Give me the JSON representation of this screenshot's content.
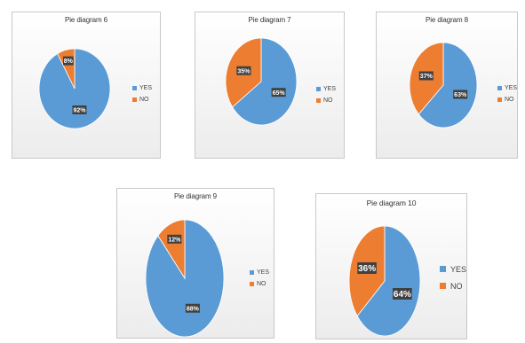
{
  "colors": {
    "yes": "#5b9bd5",
    "no": "#ed7d31",
    "label_bg": "#404040"
  },
  "chart_data": [
    {
      "type": "pie",
      "title": "Pie diagram 6",
      "categories": [
        "YES",
        "NO"
      ],
      "values": [
        92,
        8
      ],
      "labels": [
        "92%",
        "8%"
      ],
      "legend": "right"
    },
    {
      "type": "pie",
      "title": "Pie diagram 7",
      "categories": [
        "YES",
        "NO"
      ],
      "values": [
        65,
        35
      ],
      "labels": [
        "65%",
        "35%"
      ],
      "legend": "right"
    },
    {
      "type": "pie",
      "title": "Pie diagram 8",
      "categories": [
        "YES",
        "NO"
      ],
      "values": [
        63,
        37
      ],
      "labels": [
        "63%",
        "37%"
      ],
      "legend": "right"
    },
    {
      "type": "pie",
      "title": "Pie diagram 9",
      "categories": [
        "YES",
        "NO"
      ],
      "values": [
        88,
        12
      ],
      "labels": [
        "88%",
        "12%"
      ],
      "legend": "right"
    },
    {
      "type": "pie",
      "title": "Pie diagram 10",
      "categories": [
        "YES",
        "NO"
      ],
      "values": [
        64,
        36
      ],
      "labels": [
        "64%",
        "36%"
      ],
      "legend": "right"
    }
  ]
}
